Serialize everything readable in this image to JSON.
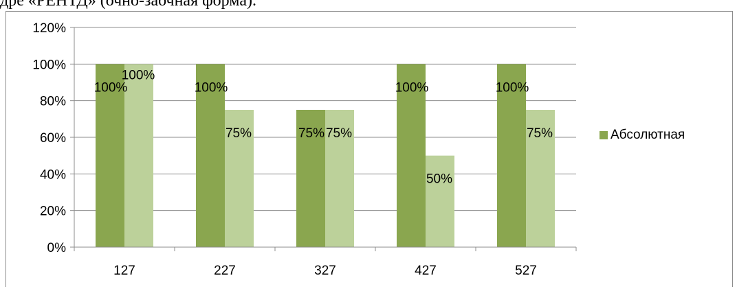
{
  "document": {
    "cut_off_line": "дре «РЕНТД» (очно-заочная форма)."
  },
  "chart_data": {
    "type": "bar",
    "categories": [
      "127",
      "227",
      "327",
      "427",
      "527"
    ],
    "series": [
      {
        "name": "Абсолютная",
        "color": "#8aa64f",
        "values": [
          100,
          100,
          75,
          100,
          100
        ],
        "labels": [
          "100%",
          "100%",
          "75%",
          "100%",
          "100%"
        ]
      },
      {
        "color": "#bcd19a",
        "values": [
          100,
          75,
          75,
          50,
          75
        ],
        "labels": [
          "100%",
          "75%",
          "75%",
          "50%",
          "75%"
        ]
      }
    ],
    "y_ticks": [
      "0%",
      "20%",
      "40%",
      "60%",
      "80%",
      "100%",
      "120%"
    ],
    "ylim": [
      0,
      120
    ],
    "grid": true,
    "legend_position": "right",
    "title": "",
    "xlabel": "",
    "ylabel": ""
  }
}
